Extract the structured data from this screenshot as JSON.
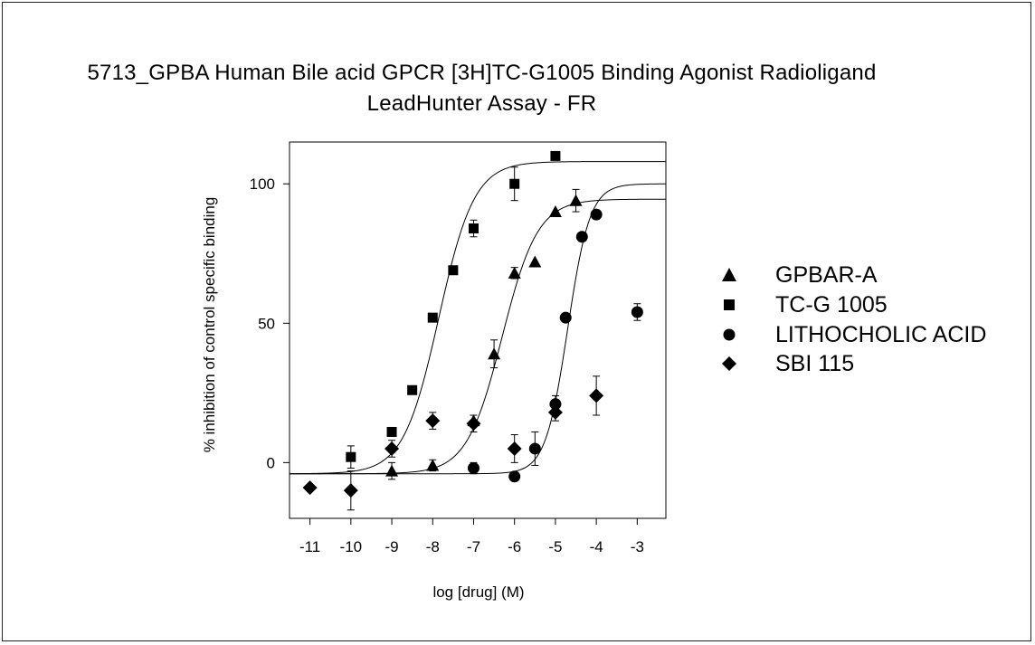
{
  "chart_data": {
    "type": "scatter",
    "title": "5713_GPBA Human Bile acid GPCR [3H]TC-G1005 Binding Agonist Radioligand LeadHunter Assay - FR",
    "title_lines": [
      "5713_GPBA Human Bile acid GPCR [3H]TC-G1005 Binding Agonist Radioligand",
      "LeadHunter Assay - FR"
    ],
    "xlabel": "log [drug] (M)",
    "ylabel": "% inhibition of control specific binding",
    "xlim": [
      -11.5,
      -2.3
    ],
    "ylim": [
      -20,
      115
    ],
    "xticks": [
      -11,
      -10,
      -9,
      -8,
      -7,
      -6,
      -5,
      -4,
      -3
    ],
    "xtick_labels": [
      "-11",
      "-10",
      "-9",
      "-8",
      "-7",
      "-6",
      "-5",
      "-4",
      "-3"
    ],
    "yticks": [
      0,
      50,
      100
    ],
    "ytick_labels": [
      "0",
      "50",
      "100"
    ],
    "grid": false,
    "legend_position": "right",
    "series": [
      {
        "name": "GPBAR-A",
        "marker": "triangle",
        "x": [
          -9,
          -8,
          -7,
          -6.5,
          -6,
          -5.5,
          -5,
          -4.5
        ],
        "y": [
          -3,
          -1,
          15,
          39,
          68,
          72,
          90,
          94
        ],
        "err": [
          3,
          2,
          2,
          5,
          2,
          0,
          0,
          4
        ],
        "fit": {
          "bottom": -4,
          "top": 94.5,
          "logEC50": -6.3,
          "hill": 1.0
        }
      },
      {
        "name": "TC-G 1005",
        "marker": "square",
        "x": [
          -10,
          -9,
          -8.5,
          -8,
          -7.5,
          -7,
          -6,
          -5
        ],
        "y": [
          2,
          11,
          26,
          52,
          69,
          84,
          100,
          110
        ],
        "err": [
          4,
          0,
          0,
          0,
          0,
          3,
          6,
          0
        ],
        "fit": {
          "bottom": -4,
          "top": 108,
          "logEC50": -7.85,
          "hill": 1.0
        }
      },
      {
        "name": "LITHOCHOLIC ACID",
        "marker": "circle",
        "x": [
          -7,
          -6,
          -5.5,
          -5,
          -4.75,
          -4.35,
          -4,
          -3
        ],
        "y": [
          -2,
          -5,
          5,
          21,
          52,
          81,
          89,
          54
        ],
        "err": [
          2,
          0,
          6,
          3,
          0,
          0,
          0,
          3
        ],
        "fit": {
          "bottom": -4,
          "top": 100,
          "logEC50": -4.7,
          "hill": 1.6
        }
      },
      {
        "name": "SBI 115",
        "marker": "diamond",
        "x": [
          -11,
          -10,
          -9,
          -8,
          -7,
          -6,
          -5,
          -4
        ],
        "y": [
          -9,
          -10,
          5,
          15,
          14,
          5,
          18,
          24
        ],
        "err": [
          0,
          7,
          3,
          3,
          3,
          5,
          3,
          7
        ]
      }
    ]
  }
}
